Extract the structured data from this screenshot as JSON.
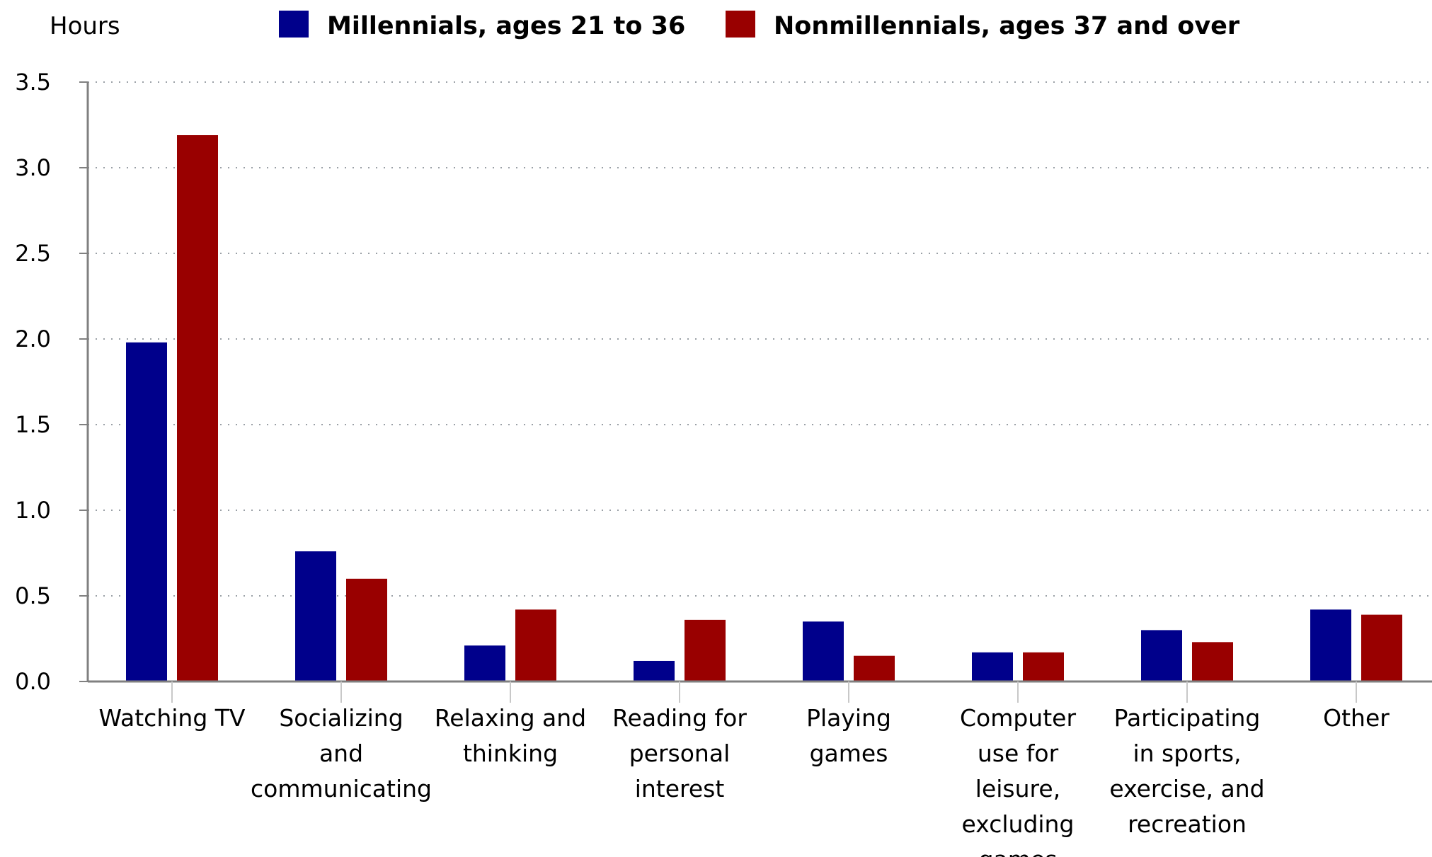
{
  "chart_data": {
    "type": "bar",
    "ylabel": "Hours",
    "ylim": [
      0,
      3.5
    ],
    "yticks": [
      "0.0",
      "0.5",
      "1.0",
      "1.5",
      "2.0",
      "2.5",
      "3.0",
      "3.5"
    ],
    "grid": true,
    "legend_position": "top",
    "categories": [
      [
        "Watching TV"
      ],
      [
        "Socializing",
        "and",
        "communicating"
      ],
      [
        "Relaxing and",
        "thinking"
      ],
      [
        "Reading for",
        "personal",
        "interest"
      ],
      [
        "Playing",
        "games"
      ],
      [
        "Computer",
        "use for",
        "leisure,",
        "excluding",
        "games"
      ],
      [
        "Participating",
        "in sports,",
        "exercise, and",
        "recreation"
      ],
      [
        "Other"
      ]
    ],
    "series": [
      {
        "name": "Millennials, ages 21 to 36",
        "color": "#00008b",
        "values": [
          1.98,
          0.76,
          0.21,
          0.12,
          0.35,
          0.17,
          0.3,
          0.42
        ]
      },
      {
        "name": "Nonmillennials, ages 37 and over",
        "color": "#990000",
        "values": [
          3.19,
          0.6,
          0.42,
          0.36,
          0.15,
          0.17,
          0.23,
          0.39
        ]
      }
    ]
  }
}
